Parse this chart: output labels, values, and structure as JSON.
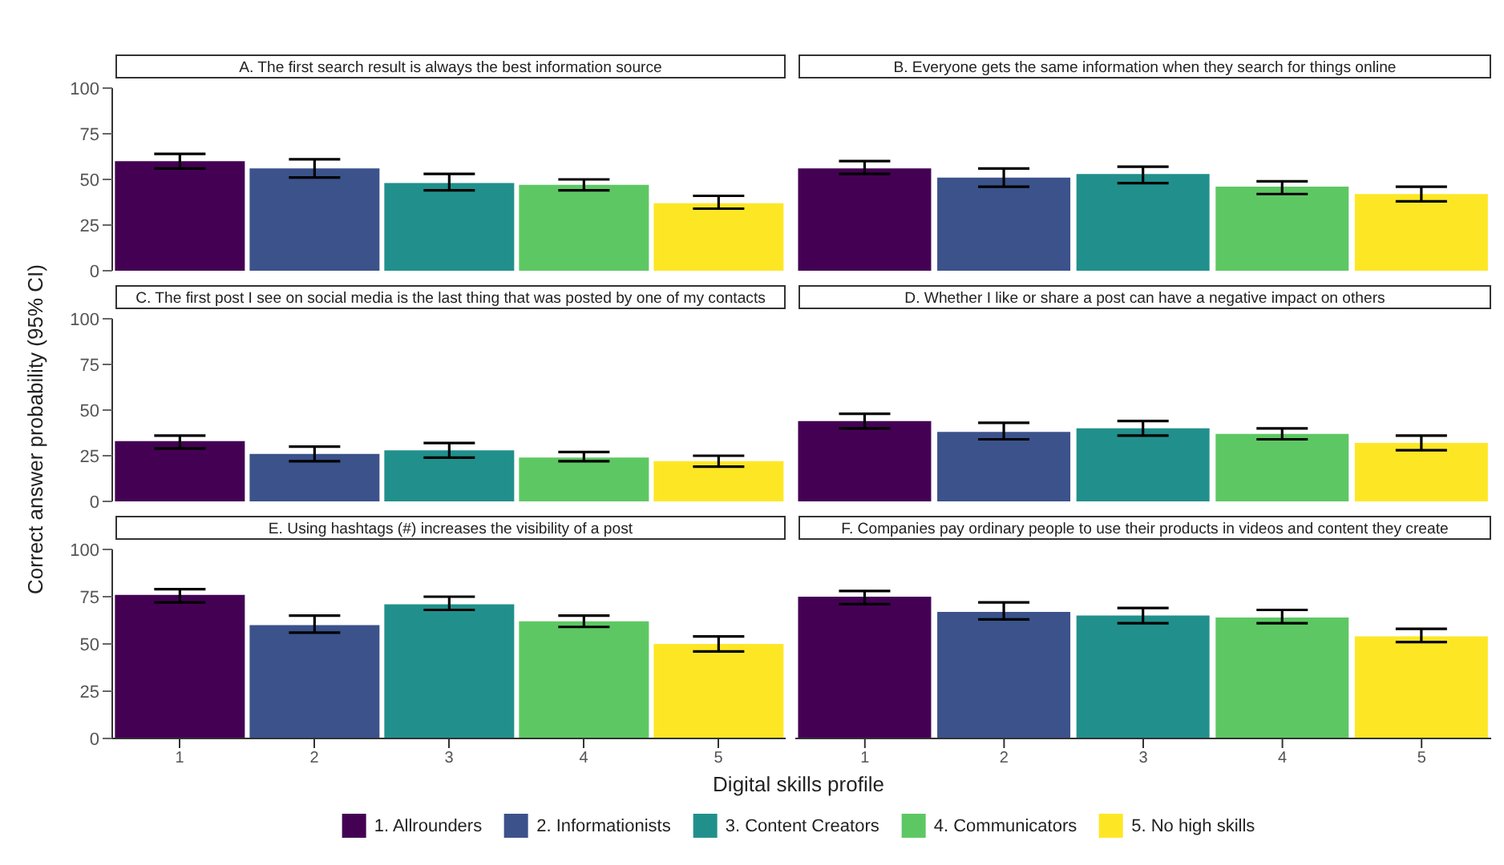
{
  "chart_data": [
    {
      "type": "bar",
      "title": "A. The first search result is always the best information source",
      "stacked": true,
      "categories": [
        "1",
        "2",
        "3",
        "4",
        "5"
      ],
      "ylim": [
        0,
        100
      ],
      "yticks": [
        0,
        25,
        50,
        75,
        100
      ],
      "tick_labels": "y",
      "grid": false,
      "legend": "bottom",
      "series": [
        {
          "name": "1. Allrounders",
          "color": "#440154",
          "values": [
            60,
            null,
            null,
            null,
            null
          ],
          "errors": [
            [
              56,
              64
            ],
            null,
            null,
            null,
            null
          ]
        },
        {
          "name": "2. Informationists",
          "color": "#3b528b",
          "values": [
            null,
            56,
            null,
            null,
            null
          ],
          "errors": [
            null,
            [
              51,
              61
            ],
            null,
            null,
            null
          ]
        },
        {
          "name": "3. Content Creators",
          "color": "#21908c",
          "values": [
            null,
            null,
            48,
            null,
            null
          ],
          "errors": [
            null,
            null,
            [
              44,
              53
            ],
            null,
            null
          ]
        },
        {
          "name": "4. Communicators",
          "color": "#5dc863",
          "values": [
            null,
            null,
            null,
            47,
            null
          ],
          "errors": [
            null,
            null,
            null,
            [
              44,
              50
            ],
            null
          ]
        },
        {
          "name": "5. No high skills",
          "color": "#fde725",
          "values": [
            null,
            null,
            null,
            null,
            37
          ],
          "errors": [
            null,
            null,
            null,
            null,
            [
              34,
              41
            ]
          ]
        }
      ]
    },
    {
      "type": "bar",
      "title": "B. Everyone gets the same information when they search for things online",
      "stacked": true,
      "categories": [
        "1",
        "2",
        "3",
        "4",
        "5"
      ],
      "ylim": [
        0,
        100
      ],
      "yticks": [
        0,
        25,
        50,
        75,
        100
      ],
      "tick_labels": false,
      "grid": false,
      "series": [
        {
          "color": "#440154",
          "values": [
            56,
            null,
            null,
            null,
            null
          ],
          "errors": [
            [
              53,
              60
            ],
            null,
            null,
            null,
            null
          ]
        },
        {
          "color": "#3b528b",
          "values": [
            null,
            51,
            null,
            null,
            null
          ],
          "errors": [
            null,
            [
              46,
              56
            ],
            null,
            null,
            null
          ]
        },
        {
          "color": "#21908c",
          "values": [
            null,
            null,
            53,
            null,
            null
          ],
          "errors": [
            null,
            null,
            [
              48,
              57
            ],
            null,
            null
          ]
        },
        {
          "color": "#5dc863",
          "values": [
            null,
            null,
            null,
            46,
            null
          ],
          "errors": [
            null,
            null,
            null,
            [
              42,
              49
            ],
            null
          ]
        },
        {
          "color": "#fde725",
          "values": [
            null,
            null,
            null,
            null,
            42
          ],
          "errors": [
            null,
            null,
            null,
            null,
            [
              38,
              46
            ]
          ]
        }
      ]
    },
    {
      "type": "bar",
      "title": "C. The first post I see on social media is the last thing that was posted by one of my contacts",
      "ylabel": "Correct answer probability (95% CI)",
      "stacked": true,
      "categories": [
        "1",
        "2",
        "3",
        "4",
        "5"
      ],
      "ylim": [
        0,
        100
      ],
      "yticks": [
        0,
        25,
        50,
        75,
        100
      ],
      "tick_labels": "y",
      "grid": false,
      "series": [
        {
          "color": "#440154",
          "values": [
            33,
            null,
            null,
            null,
            null
          ],
          "errors": [
            [
              29,
              36
            ],
            null,
            null,
            null,
            null
          ]
        },
        {
          "color": "#3b528b",
          "values": [
            null,
            26,
            null,
            null,
            null
          ],
          "errors": [
            null,
            [
              22,
              30
            ],
            null,
            null,
            null
          ]
        },
        {
          "color": "#21908c",
          "values": [
            null,
            null,
            28,
            null,
            null
          ],
          "errors": [
            null,
            null,
            [
              24,
              32
            ],
            null,
            null
          ]
        },
        {
          "color": "#5dc863",
          "values": [
            null,
            null,
            null,
            24,
            null
          ],
          "errors": [
            null,
            null,
            null,
            [
              22,
              27
            ],
            null
          ]
        },
        {
          "color": "#fde725",
          "values": [
            null,
            null,
            null,
            null,
            22
          ],
          "errors": [
            null,
            null,
            null,
            null,
            [
              19,
              25
            ]
          ]
        }
      ]
    },
    {
      "type": "bar",
      "title": "D. Whether I like or share a post can have a negative impact on others",
      "stacked": true,
      "categories": [
        "1",
        "2",
        "3",
        "4",
        "5"
      ],
      "ylim": [
        0,
        100
      ],
      "yticks": [
        0,
        25,
        50,
        75,
        100
      ],
      "tick_labels": false,
      "grid": false,
      "series": [
        {
          "color": "#440154",
          "values": [
            44,
            null,
            null,
            null,
            null
          ],
          "errors": [
            [
              40,
              48
            ],
            null,
            null,
            null,
            null
          ]
        },
        {
          "color": "#3b528b",
          "values": [
            null,
            38,
            null,
            null,
            null
          ],
          "errors": [
            null,
            [
              34,
              43
            ],
            null,
            null,
            null
          ]
        },
        {
          "color": "#21908c",
          "values": [
            null,
            null,
            40,
            null,
            null
          ],
          "errors": [
            null,
            null,
            [
              36,
              44
            ],
            null,
            null
          ]
        },
        {
          "color": "#5dc863",
          "values": [
            null,
            null,
            null,
            37,
            null
          ],
          "errors": [
            null,
            null,
            null,
            [
              34,
              40
            ],
            null
          ]
        },
        {
          "color": "#fde725",
          "values": [
            null,
            null,
            null,
            null,
            32
          ],
          "errors": [
            null,
            null,
            null,
            null,
            [
              28,
              36
            ]
          ]
        }
      ]
    },
    {
      "type": "bar",
      "title": "E. Using hashtags (#) increases the visibility of a post",
      "xlabel": "Digital skills profile",
      "stacked": true,
      "categories": [
        "1",
        "2",
        "3",
        "4",
        "5"
      ],
      "ylim": [
        0,
        100
      ],
      "yticks": [
        0,
        25,
        50,
        75,
        100
      ],
      "grid": false,
      "series": [
        {
          "color": "#440154",
          "values": [
            76,
            null,
            null,
            null,
            null
          ],
          "errors": [
            [
              72,
              79
            ],
            null,
            null,
            null,
            null
          ]
        },
        {
          "color": "#3b528b",
          "values": [
            null,
            60,
            null,
            null,
            null
          ],
          "errors": [
            null,
            [
              56,
              65
            ],
            null,
            null,
            null
          ]
        },
        {
          "color": "#21908c",
          "values": [
            null,
            null,
            71,
            null,
            null
          ],
          "errors": [
            null,
            null,
            [
              68,
              75
            ],
            null,
            null
          ]
        },
        {
          "color": "#5dc863",
          "values": [
            null,
            null,
            null,
            62,
            null
          ],
          "errors": [
            null,
            null,
            null,
            [
              59,
              65
            ],
            null
          ]
        },
        {
          "color": "#fde725",
          "values": [
            null,
            null,
            null,
            null,
            50
          ],
          "errors": [
            null,
            null,
            null,
            null,
            [
              46,
              54
            ]
          ]
        }
      ]
    },
    {
      "type": "bar",
      "title": "F. Companies pay ordinary people to use their products in videos and content they create",
      "stacked": true,
      "categories": [
        "1",
        "2",
        "3",
        "4",
        "5"
      ],
      "ylim": [
        0,
        100
      ],
      "yticks": [
        0,
        25,
        50,
        75,
        100
      ],
      "tick_labels": "x",
      "grid": false,
      "series": [
        {
          "color": "#440154",
          "values": [
            75,
            null,
            null,
            null,
            null
          ],
          "errors": [
            [
              71,
              78
            ],
            null,
            null,
            null,
            null
          ]
        },
        {
          "color": "#3b528b",
          "values": [
            null,
            67,
            null,
            null,
            null
          ],
          "errors": [
            null,
            [
              63,
              72
            ],
            null,
            null,
            null
          ]
        },
        {
          "color": "#21908c",
          "values": [
            null,
            null,
            65,
            null,
            null
          ],
          "errors": [
            null,
            null,
            [
              61,
              69
            ],
            null,
            null
          ]
        },
        {
          "color": "#5dc863",
          "values": [
            null,
            null,
            null,
            64,
            null
          ],
          "errors": [
            null,
            null,
            null,
            [
              61,
              68
            ],
            null
          ]
        },
        {
          "color": "#fde725",
          "values": [
            null,
            null,
            null,
            null,
            54
          ],
          "errors": [
            null,
            null,
            null,
            null,
            [
              51,
              58
            ]
          ]
        }
      ]
    }
  ]
}
